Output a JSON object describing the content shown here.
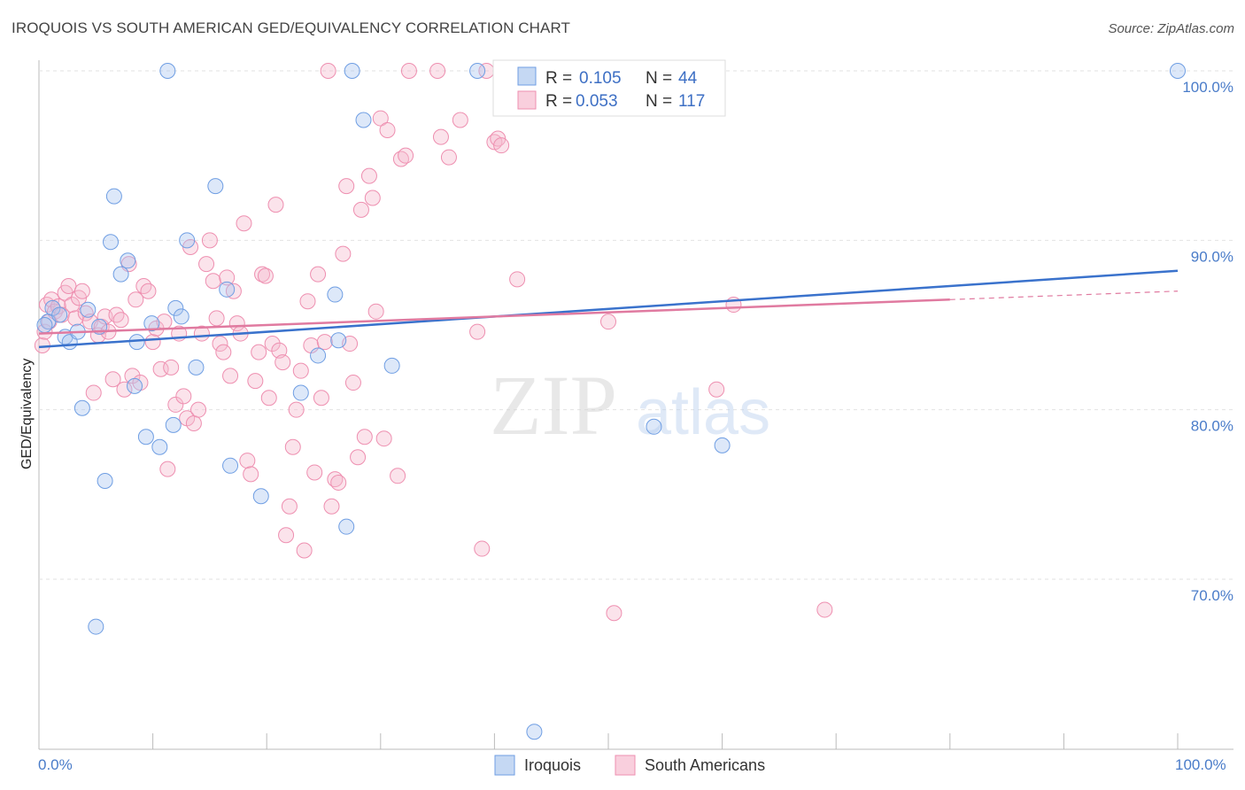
{
  "header": {
    "title": "IROQUOIS VS SOUTH AMERICAN GED/EQUIVALENCY CORRELATION CHART",
    "source": "Source: ZipAtlas.com"
  },
  "legend": {
    "iroquois": {
      "r_label": "R =",
      "r_value": "0.105",
      "n_label": "N =",
      "n_value": "44"
    },
    "south_americans": {
      "r_label": "R =",
      "r_value": "0.053",
      "n_label": "N =",
      "n_value": "117"
    }
  },
  "bottom_legend": {
    "iroquois": "Iroquois",
    "south_americans": "South Americans"
  },
  "watermark": {
    "zip": "ZIP",
    "atlas": "atlas"
  },
  "chart_data": {
    "type": "scatter",
    "title": "IROQUOIS VS SOUTH AMERICAN GED/EQUIVALENCY CORRELATION CHART",
    "xlabel": "",
    "ylabel": "GED/Equivalency",
    "xlim": [
      0,
      100
    ],
    "ylim": [
      60,
      102
    ],
    "x_tick_labels": [
      "0.0%",
      "100.0%"
    ],
    "y_ticks": [
      70,
      80,
      90,
      100
    ],
    "y_tick_labels": [
      "70.0%",
      "80.0%",
      "90.0%",
      "100.0%"
    ],
    "colors": {
      "iroquois": "#6f9ee3",
      "south_americans": "#ee8fb0",
      "iroquois_line": "#3a72cc",
      "south_line": "#e07aa0"
    },
    "series": [
      {
        "name": "Iroquois",
        "trend": {
          "x0": 0,
          "y0": 83.7,
          "x1": 100,
          "y1": 88.2
        },
        "points": [
          [
            0.8,
            85.2
          ],
          [
            1.2,
            86.0
          ],
          [
            1.8,
            85.6
          ],
          [
            2.3,
            84.3
          ],
          [
            2.7,
            84.0
          ],
          [
            3.4,
            84.6
          ],
          [
            3.8,
            80.1
          ],
          [
            4.3,
            85.9
          ],
          [
            5.0,
            67.2
          ],
          [
            5.3,
            84.9
          ],
          [
            5.8,
            75.8
          ],
          [
            6.3,
            89.9
          ],
          [
            6.6,
            92.6
          ],
          [
            7.2,
            88.0
          ],
          [
            7.8,
            88.8
          ],
          [
            8.4,
            81.4
          ],
          [
            8.6,
            84.0
          ],
          [
            9.4,
            78.4
          ],
          [
            9.9,
            85.1
          ],
          [
            10.6,
            77.8
          ],
          [
            11.3,
            100.0
          ],
          [
            11.8,
            79.1
          ],
          [
            12.0,
            86.0
          ],
          [
            12.5,
            85.5
          ],
          [
            13.0,
            90.0
          ],
          [
            13.8,
            82.5
          ],
          [
            15.5,
            93.2
          ],
          [
            16.5,
            87.1
          ],
          [
            16.8,
            76.7
          ],
          [
            19.5,
            74.9
          ],
          [
            23.0,
            81.0
          ],
          [
            24.5,
            83.2
          ],
          [
            26.0,
            86.8
          ],
          [
            26.3,
            84.1
          ],
          [
            27.0,
            73.1
          ],
          [
            27.5,
            100.0
          ],
          [
            28.5,
            97.1
          ],
          [
            31.0,
            82.6
          ],
          [
            38.5,
            100.0
          ],
          [
            43.5,
            61.0
          ],
          [
            54.0,
            79.0
          ],
          [
            60.0,
            77.9
          ],
          [
            100.0,
            100.0
          ],
          [
            0.5,
            85.0
          ]
        ]
      },
      {
        "name": "South Americans",
        "trend": {
          "x0": 0,
          "y0": 84.5,
          "x1": 80,
          "y1": 86.5,
          "dashed_to_x": 100,
          "dashed_to_y": 87.0
        },
        "points": [
          [
            0.3,
            83.8
          ],
          [
            0.5,
            84.6
          ],
          [
            0.7,
            86.2
          ],
          [
            0.9,
            85.2
          ],
          [
            1.1,
            86.5
          ],
          [
            1.4,
            85.8
          ],
          [
            1.7,
            86.1
          ],
          [
            2.0,
            85.6
          ],
          [
            2.3,
            86.9
          ],
          [
            2.6,
            87.3
          ],
          [
            2.9,
            86.2
          ],
          [
            3.2,
            85.4
          ],
          [
            3.5,
            86.6
          ],
          [
            3.8,
            87.0
          ],
          [
            4.1,
            85.7
          ],
          [
            4.5,
            85.2
          ],
          [
            4.8,
            81.0
          ],
          [
            5.2,
            84.4
          ],
          [
            5.5,
            84.9
          ],
          [
            5.8,
            85.5
          ],
          [
            6.1,
            84.6
          ],
          [
            6.5,
            81.8
          ],
          [
            6.8,
            85.6
          ],
          [
            7.2,
            85.3
          ],
          [
            7.5,
            81.2
          ],
          [
            7.9,
            88.6
          ],
          [
            8.2,
            82.0
          ],
          [
            8.5,
            86.5
          ],
          [
            8.9,
            81.6
          ],
          [
            9.2,
            87.3
          ],
          [
            9.6,
            87.0
          ],
          [
            10.0,
            84.0
          ],
          [
            10.3,
            84.8
          ],
          [
            10.7,
            82.4
          ],
          [
            11.0,
            85.2
          ],
          [
            11.3,
            76.5
          ],
          [
            11.6,
            82.5
          ],
          [
            12.0,
            80.3
          ],
          [
            12.3,
            84.5
          ],
          [
            12.7,
            80.8
          ],
          [
            13.0,
            79.5
          ],
          [
            13.3,
            89.6
          ],
          [
            13.6,
            79.2
          ],
          [
            14.0,
            80.0
          ],
          [
            14.3,
            84.5
          ],
          [
            14.7,
            88.6
          ],
          [
            15.0,
            90.0
          ],
          [
            15.3,
            87.6
          ],
          [
            15.6,
            85.4
          ],
          [
            15.9,
            83.9
          ],
          [
            16.2,
            83.4
          ],
          [
            16.5,
            87.8
          ],
          [
            16.8,
            82.0
          ],
          [
            17.1,
            87.0
          ],
          [
            17.4,
            85.1
          ],
          [
            17.7,
            84.5
          ],
          [
            18.0,
            91.0
          ],
          [
            18.3,
            77.0
          ],
          [
            18.6,
            76.2
          ],
          [
            19.0,
            81.7
          ],
          [
            19.3,
            83.4
          ],
          [
            19.6,
            88.0
          ],
          [
            19.9,
            87.9
          ],
          [
            20.2,
            80.7
          ],
          [
            20.5,
            83.9
          ],
          [
            20.8,
            92.1
          ],
          [
            21.1,
            83.5
          ],
          [
            21.4,
            82.8
          ],
          [
            21.7,
            72.6
          ],
          [
            22.0,
            74.3
          ],
          [
            22.3,
            77.8
          ],
          [
            22.6,
            80.0
          ],
          [
            23.0,
            82.3
          ],
          [
            23.3,
            71.7
          ],
          [
            23.6,
            86.4
          ],
          [
            23.9,
            83.8
          ],
          [
            24.2,
            76.3
          ],
          [
            24.5,
            88.0
          ],
          [
            24.8,
            80.7
          ],
          [
            25.1,
            84.0
          ],
          [
            25.4,
            100.0
          ],
          [
            25.7,
            74.3
          ],
          [
            26.0,
            75.9
          ],
          [
            26.3,
            75.7
          ],
          [
            26.7,
            89.2
          ],
          [
            27.0,
            93.2
          ],
          [
            27.3,
            83.9
          ],
          [
            27.6,
            81.6
          ],
          [
            28.0,
            77.2
          ],
          [
            28.3,
            91.8
          ],
          [
            28.6,
            78.4
          ],
          [
            29.0,
            93.8
          ],
          [
            29.3,
            92.5
          ],
          [
            29.6,
            85.8
          ],
          [
            30.0,
            97.2
          ],
          [
            30.3,
            78.3
          ],
          [
            30.6,
            96.5
          ],
          [
            31.5,
            76.1
          ],
          [
            31.8,
            94.8
          ],
          [
            32.2,
            95.0
          ],
          [
            32.5,
            100.0
          ],
          [
            35.0,
            100.0
          ],
          [
            35.3,
            96.1
          ],
          [
            36.0,
            94.9
          ],
          [
            37.0,
            97.1
          ],
          [
            38.5,
            84.6
          ],
          [
            38.9,
            71.8
          ],
          [
            39.3,
            100.0
          ],
          [
            40.0,
            95.8
          ],
          [
            40.3,
            96.0
          ],
          [
            40.6,
            95.6
          ],
          [
            42.0,
            87.7
          ],
          [
            50.0,
            85.2
          ],
          [
            50.5,
            68.0
          ],
          [
            59.5,
            81.2
          ],
          [
            61.0,
            86.2
          ],
          [
            69.0,
            68.2
          ]
        ]
      }
    ]
  }
}
